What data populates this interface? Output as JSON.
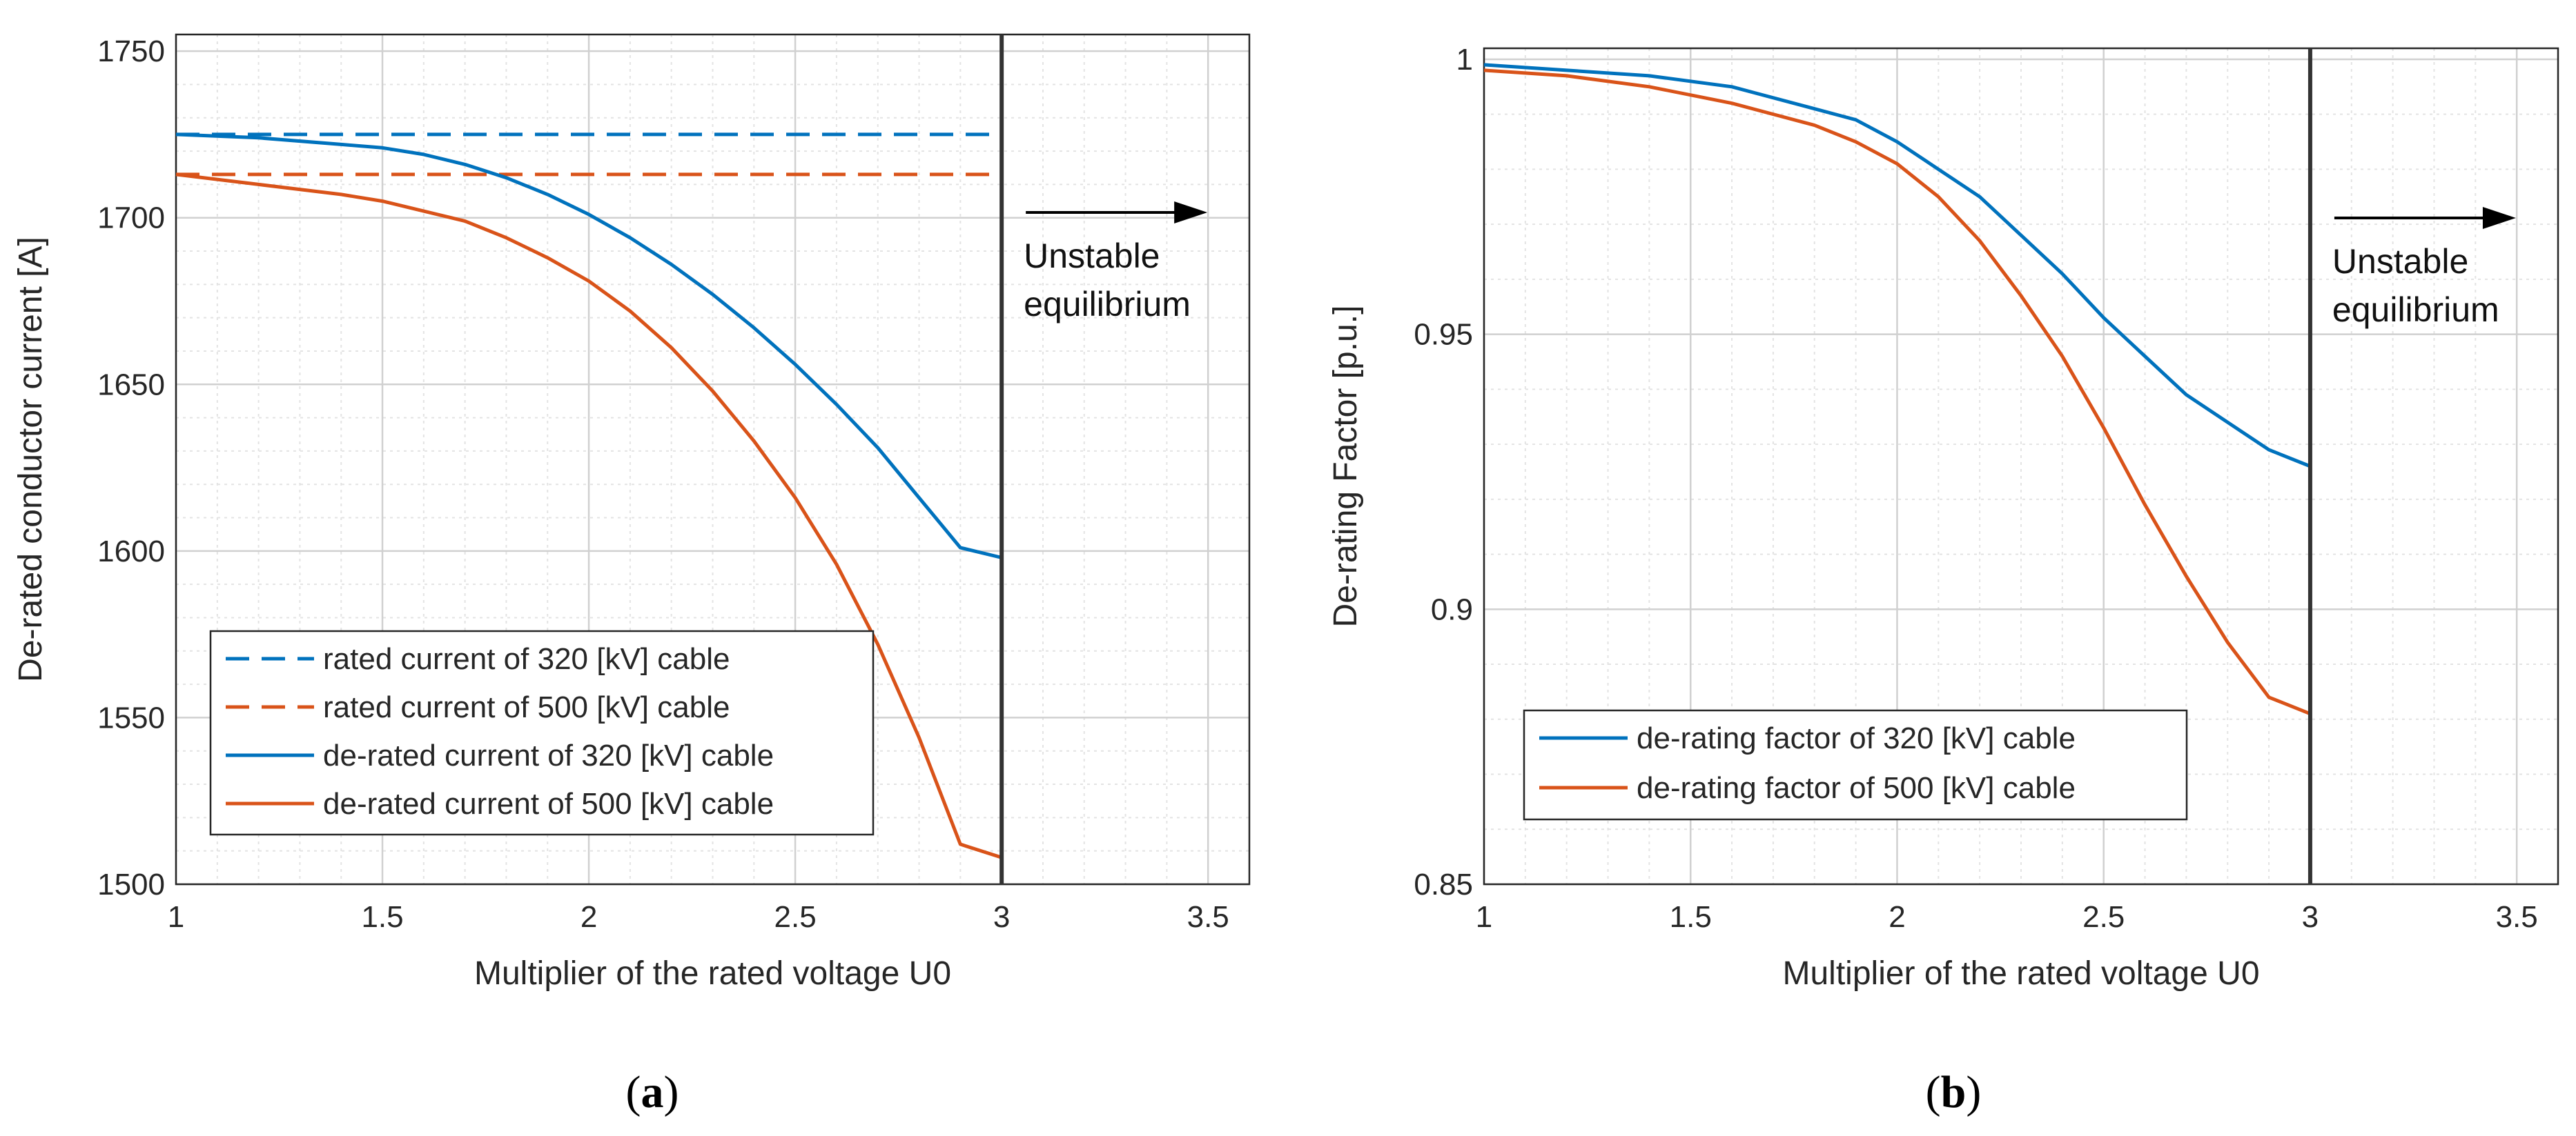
{
  "chart_data": [
    {
      "type": "line",
      "panel_label": "a",
      "xlabel": "Multiplier of the rated voltage U0",
      "ylabel": "De-rated conductor current [A]",
      "xlim": [
        1,
        3.6
      ],
      "ylim": [
        1500,
        1755
      ],
      "xticks": [
        "1",
        "1.5",
        "2",
        "2.5",
        "3",
        "3.5"
      ],
      "yticks": [
        "1500",
        "1550",
        "1600",
        "1650",
        "1700",
        "1750"
      ],
      "grid": true,
      "minor_grid": true,
      "legend_position": "lower-left",
      "annotation": {
        "lines": [
          "Unstable",
          "equilibrium"
        ],
        "x_line": 3
      },
      "series": [
        {
          "name": "rated current of 320 [kV] cable",
          "color": "#0072BD",
          "style": "dashed",
          "x": [
            1,
            3
          ],
          "y": [
            1725,
            1725
          ]
        },
        {
          "name": "rated current of 500 [kV] cable",
          "color": "#D95319",
          "style": "dashed",
          "x": [
            1,
            3
          ],
          "y": [
            1713,
            1713
          ]
        },
        {
          "name": "de-rated current of 320 [kV] cable",
          "color": "#0072BD",
          "style": "solid",
          "x": [
            1,
            1.2,
            1.4,
            1.5,
            1.6,
            1.7,
            1.8,
            1.9,
            2.0,
            2.1,
            2.2,
            2.3,
            2.4,
            2.5,
            2.6,
            2.7,
            2.8,
            2.9,
            3.0
          ],
          "y": [
            1725,
            1724,
            1722,
            1721,
            1719,
            1716,
            1712,
            1707,
            1701,
            1694,
            1686,
            1677,
            1667,
            1656,
            1644,
            1631,
            1616,
            1601,
            1598
          ]
        },
        {
          "name": "de-rated current of 500 [kV] cable",
          "color": "#D95319",
          "style": "solid",
          "x": [
            1,
            1.2,
            1.4,
            1.5,
            1.6,
            1.7,
            1.8,
            1.9,
            2.0,
            2.1,
            2.2,
            2.3,
            2.4,
            2.5,
            2.6,
            2.7,
            2.8,
            2.9,
            3.0
          ],
          "y": [
            1713,
            1710,
            1707,
            1705,
            1702,
            1699,
            1694,
            1688,
            1681,
            1672,
            1661,
            1648,
            1633,
            1616,
            1596,
            1572,
            1544,
            1512,
            1508
          ]
        }
      ]
    },
    {
      "type": "line",
      "panel_label": "b",
      "xlabel": "Multiplier of the rated voltage U0",
      "ylabel": "De-rating Factor [p.u.]",
      "xlim": [
        1,
        3.6
      ],
      "ylim": [
        0.85,
        1.002
      ],
      "xticks": [
        "1",
        "1.5",
        "2",
        "2.5",
        "3",
        "3.5"
      ],
      "yticks": [
        "0.85",
        "0.9",
        "0.95",
        "1"
      ],
      "grid": true,
      "minor_grid": true,
      "legend_position": "lower-left",
      "annotation": {
        "lines": [
          "Unstable",
          "equilibrium"
        ],
        "x_line": 3
      },
      "series": [
        {
          "name": "de-rating factor of 320 [kV] cable",
          "color": "#0072BD",
          "style": "solid",
          "x": [
            1,
            1.2,
            1.4,
            1.6,
            1.8,
            1.9,
            2.0,
            2.1,
            2.2,
            2.3,
            2.4,
            2.5,
            2.6,
            2.7,
            2.8,
            2.9,
            3.0
          ],
          "y": [
            0.999,
            0.998,
            0.997,
            0.995,
            0.991,
            0.989,
            0.985,
            0.98,
            0.975,
            0.968,
            0.961,
            0.953,
            0.946,
            0.939,
            0.934,
            0.929,
            0.926
          ]
        },
        {
          "name": "de-rating factor of 500 [kV] cable",
          "color": "#D95319",
          "style": "solid",
          "x": [
            1,
            1.2,
            1.4,
            1.6,
            1.8,
            1.9,
            2.0,
            2.1,
            2.2,
            2.3,
            2.4,
            2.5,
            2.6,
            2.7,
            2.8,
            2.9,
            3.0
          ],
          "y": [
            0.998,
            0.997,
            0.995,
            0.992,
            0.988,
            0.985,
            0.981,
            0.975,
            0.967,
            0.957,
            0.946,
            0.933,
            0.919,
            0.906,
            0.894,
            0.884,
            0.881
          ]
        }
      ]
    }
  ]
}
